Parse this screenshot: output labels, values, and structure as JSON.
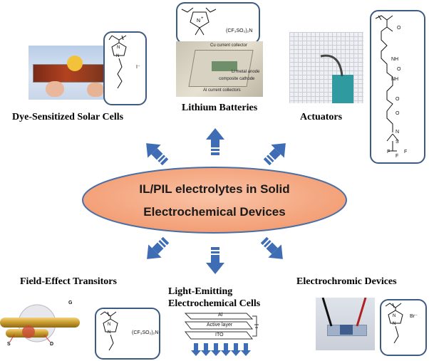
{
  "center": {
    "line1": "IL/PIL electrolytes in Solid",
    "line2": "Electrochemical Devices",
    "fill": "#f4a582",
    "stroke": "#4a6fa5"
  },
  "arrow_color": "#3f6db5",
  "labels": {
    "dssc": "Dye-Sensitized Solar Cells",
    "lithium": "Lithium Batteries",
    "actuators": "Actuators",
    "fet": "Field-Effect Transitors",
    "lec_line1": "Light-Emitting",
    "lec_line2": "Electrochemical Cells",
    "electrochromic": "Electrochromic Devices"
  },
  "chem": {
    "dssc_anion": "I⁻",
    "lithium_anion": "(CF₃SO₂)₂N",
    "fet_anion": "(CF₃SO₂)₂N-",
    "ec_anion": "Br⁻",
    "actuator_groups": [
      "NH",
      "NH",
      "O",
      "O",
      "N",
      "S",
      "F",
      "F",
      "F",
      "O",
      "O"
    ]
  },
  "battery_photo": {
    "top": "Cu current collector",
    "mid1": "Li metal anode",
    "mid2": "composite cathode",
    "bottom": "Al current collectors"
  },
  "fet": {
    "g": "G",
    "s": "S",
    "d": "D"
  },
  "lec_stack": {
    "top": "Al",
    "mid": "Active layer",
    "bottom": "ITO"
  }
}
